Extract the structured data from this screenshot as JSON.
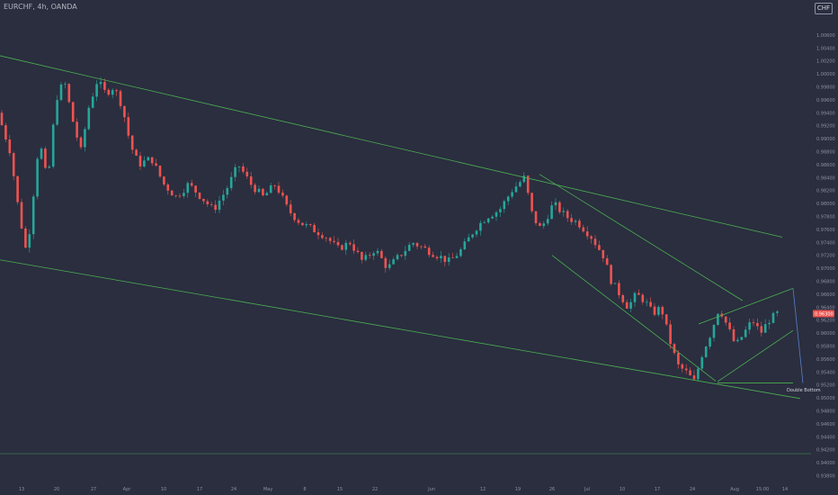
{
  "header": {
    "symbol_title": "EURCHF, 4h, OANDA",
    "currency_badge": "CHF"
  },
  "chart_data": {
    "type": "candlestick",
    "title": "EURCHF, 4h, OANDA",
    "ylabel": "CHF",
    "ylim": [
      0.937,
      1.007
    ],
    "y_ticks": [
      "1.00600",
      "1.00400",
      "1.00200",
      "1.00000",
      "0.99800",
      "0.99600",
      "0.99400",
      "0.99200",
      "0.99000",
      "0.98800",
      "0.98600",
      "0.98400",
      "0.98200",
      "0.98000",
      "0.97800",
      "0.97600",
      "0.97400",
      "0.97200",
      "0.97000",
      "0.96800",
      "0.96600",
      "0.96400",
      "0.96200",
      "0.96000",
      "0.95800",
      "0.95600",
      "0.95400",
      "0.95200",
      "0.95000",
      "0.94800",
      "0.94600",
      "0.94400",
      "0.94200",
      "0.94000",
      "0.93800"
    ],
    "x_ticks": [
      "13",
      "20",
      "27",
      "Apr",
      "10",
      "17",
      "24",
      "May",
      "8",
      "15",
      "22",
      "Jun",
      "12",
      "19",
      "26",
      "Jul",
      "10",
      "17",
      "24",
      "Aug",
      "15:00",
      "14"
    ],
    "current_price": "0.96300",
    "colors": {
      "up": "#26a69a",
      "down": "#ef5350",
      "trendline": "#4caf50",
      "projection": "#5b7fc7",
      "background": "#2a2e3f"
    },
    "price_path": [
      {
        "t": 0,
        "p": 0.994
      },
      {
        "t": 3,
        "p": 0.988
      },
      {
        "t": 5,
        "p": 0.979
      },
      {
        "t": 7,
        "p": 0.972
      },
      {
        "t": 8,
        "p": 0.978
      },
      {
        "t": 10,
        "p": 0.99
      },
      {
        "t": 12,
        "p": 0.983
      },
      {
        "t": 14,
        "p": 0.996
      },
      {
        "t": 16,
        "p": 0.999
      },
      {
        "t": 18,
        "p": 0.993
      },
      {
        "t": 20,
        "p": 0.988
      },
      {
        "t": 22,
        "p": 0.995
      },
      {
        "t": 24,
        "p": 0.999
      },
      {
        "t": 26,
        "p": 0.997
      },
      {
        "t": 28,
        "p": 0.998
      },
      {
        "t": 30,
        "p": 0.995
      },
      {
        "t": 32,
        "p": 0.989
      },
      {
        "t": 34,
        "p": 0.986
      },
      {
        "t": 37,
        "p": 0.987
      },
      {
        "t": 40,
        "p": 0.983
      },
      {
        "t": 43,
        "p": 0.981
      },
      {
        "t": 46,
        "p": 0.983
      },
      {
        "t": 49,
        "p": 0.981
      },
      {
        "t": 52,
        "p": 0.979
      },
      {
        "t": 55,
        "p": 0.982
      },
      {
        "t": 58,
        "p": 0.986
      },
      {
        "t": 61,
        "p": 0.983
      },
      {
        "t": 64,
        "p": 0.981
      },
      {
        "t": 67,
        "p": 0.983
      },
      {
        "t": 70,
        "p": 0.979
      },
      {
        "t": 73,
        "p": 0.977
      },
      {
        "t": 76,
        "p": 0.976
      },
      {
        "t": 79,
        "p": 0.975
      },
      {
        "t": 82,
        "p": 0.973
      },
      {
        "t": 85,
        "p": 0.974
      },
      {
        "t": 88,
        "p": 0.971
      },
      {
        "t": 91,
        "p": 0.973
      },
      {
        "t": 94,
        "p": 0.97
      },
      {
        "t": 97,
        "p": 0.972
      },
      {
        "t": 100,
        "p": 0.974
      },
      {
        "t": 103,
        "p": 0.973
      },
      {
        "t": 106,
        "p": 0.972
      },
      {
        "t": 109,
        "p": 0.971
      },
      {
        "t": 112,
        "p": 0.973
      },
      {
        "t": 115,
        "p": 0.976
      },
      {
        "t": 118,
        "p": 0.978
      },
      {
        "t": 121,
        "p": 0.979
      },
      {
        "t": 124,
        "p": 0.982
      },
      {
        "t": 127,
        "p": 0.984
      },
      {
        "t": 129,
        "p": 0.978
      },
      {
        "t": 131,
        "p": 0.976
      },
      {
        "t": 134,
        "p": 0.98
      },
      {
        "t": 137,
        "p": 0.978
      },
      {
        "t": 140,
        "p": 0.977
      },
      {
        "t": 143,
        "p": 0.975
      },
      {
        "t": 146,
        "p": 0.972
      },
      {
        "t": 148,
        "p": 0.968
      },
      {
        "t": 150,
        "p": 0.966
      },
      {
        "t": 152,
        "p": 0.964
      },
      {
        "t": 154,
        "p": 0.966
      },
      {
        "t": 156,
        "p": 0.965
      },
      {
        "t": 158,
        "p": 0.963
      },
      {
        "t": 160,
        "p": 0.964
      },
      {
        "t": 162,
        "p": 0.959
      },
      {
        "t": 164,
        "p": 0.955
      },
      {
        "t": 166,
        "p": 0.954
      },
      {
        "t": 168,
        "p": 0.9525
      },
      {
        "t": 170,
        "p": 0.957
      },
      {
        "t": 172,
        "p": 0.96
      },
      {
        "t": 174,
        "p": 0.964
      },
      {
        "t": 176,
        "p": 0.961
      },
      {
        "t": 178,
        "p": 0.958
      },
      {
        "t": 180,
        "p": 0.96
      },
      {
        "t": 182,
        "p": 0.962
      },
      {
        "t": 184,
        "p": 0.96
      },
      {
        "t": 186,
        "p": 0.962
      },
      {
        "t": 188,
        "p": 0.963
      }
    ],
    "trendlines": [
      {
        "name": "channel-upper",
        "x1": 0,
        "y1": 1.0028,
        "x2": 870,
        "y2": 0.9748
      },
      {
        "name": "channel-lower",
        "x1": 0,
        "y1": 0.9713,
        "x2": 890,
        "y2": 0.9499
      },
      {
        "name": "wedge-upper",
        "x1": 600,
        "y1": 0.9845,
        "x2": 826,
        "y2": 0.965
      },
      {
        "name": "wedge-lower",
        "x1": 614,
        "y1": 0.972,
        "x2": 796,
        "y2": 0.9526
      },
      {
        "name": "triangle-upper",
        "x1": 777,
        "y1": 0.9614,
        "x2": 882,
        "y2": 0.9669
      },
      {
        "name": "triangle-lower",
        "x1": 798,
        "y1": 0.9525,
        "x2": 882,
        "y2": 0.9604
      },
      {
        "name": "double-bottom-level",
        "x1": 798,
        "y1": 0.9523,
        "x2": 882,
        "y2": 0.9523
      }
    ],
    "projection": {
      "x1": 882,
      "y1": 0.9669,
      "x2": 893,
      "y2": 0.9523
    },
    "horizontal_level": {
      "y": 0.9414
    },
    "annotations": [
      {
        "text": "Double Bottom",
        "x": 875,
        "y": 0.951
      }
    ]
  }
}
